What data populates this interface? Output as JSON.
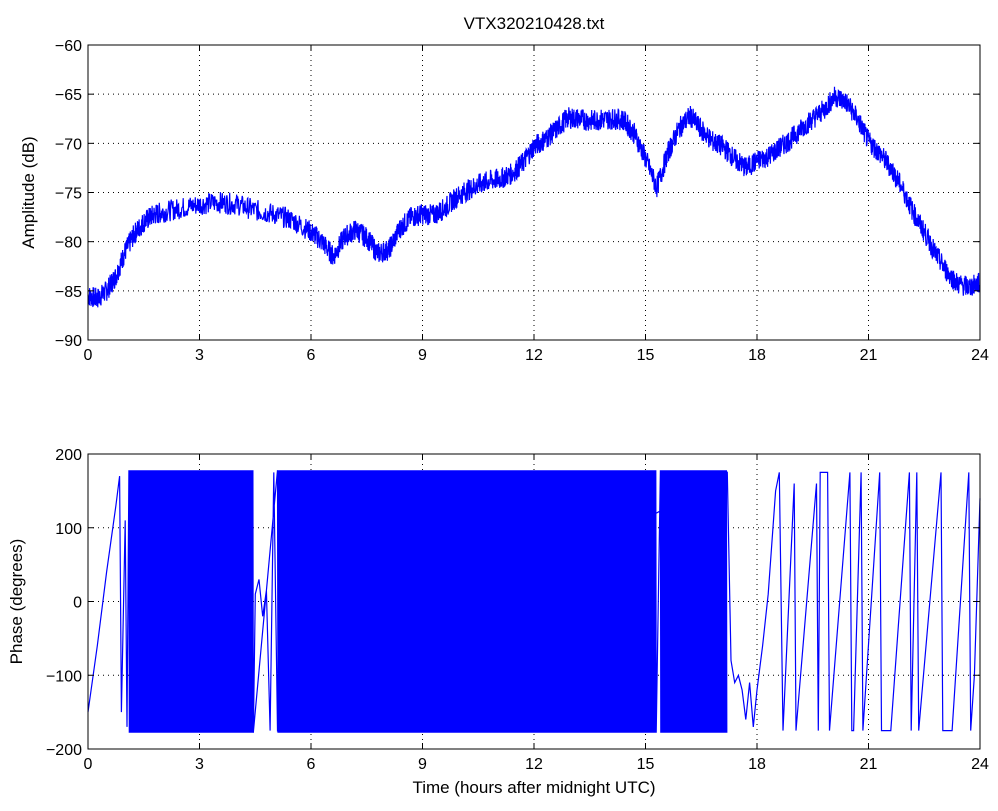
{
  "chart_data": [
    {
      "type": "line",
      "title": "VTX320210428.txt",
      "xlabel": "",
      "ylabel": "Amplitude (dB)",
      "xlim": [
        0,
        24
      ],
      "ylim": [
        -90,
        -60
      ],
      "xticks": [
        "0",
        "3",
        "6",
        "9",
        "12",
        "15",
        "18",
        "21",
        "24"
      ],
      "yticks": [
        "−60",
        "−65",
        "−70",
        "−75",
        "−80",
        "−85",
        "−90"
      ],
      "grid": true,
      "line_color": "#0000ff",
      "series": [
        {
          "x": [
            0,
            0.25,
            0.5,
            0.75,
            1,
            1.25,
            1.5,
            1.75,
            2,
            2.5,
            3,
            3.5,
            4,
            4.5,
            5,
            5.5,
            6,
            6.3,
            6.6,
            6.9,
            7.2,
            7.5,
            7.8,
            8.1,
            8.4,
            8.7,
            9,
            9.3,
            9.6,
            9.9,
            10.2,
            10.5,
            10.8,
            11.1,
            11.4,
            11.7,
            12,
            12.3,
            12.6,
            12.9,
            13.2,
            13.5,
            13.8,
            14.1,
            14.4,
            14.7,
            15,
            15.3,
            15.6,
            15.9,
            16.2,
            16.5,
            16.8,
            17.1,
            17.4,
            17.7,
            18,
            18.3,
            18.6,
            18.9,
            19.2,
            19.5,
            19.8,
            20.1,
            20.4,
            20.7,
            21,
            21.3,
            21.6,
            21.9,
            22.2,
            22.5,
            22.8,
            23.1,
            23.4,
            23.7,
            24
          ],
          "y": [
            -85.5,
            -85.8,
            -85,
            -83.5,
            -81,
            -79.2,
            -78,
            -77.3,
            -77,
            -76.6,
            -76.2,
            -76,
            -76.2,
            -76.8,
            -77.2,
            -77.8,
            -79,
            -80,
            -81.5,
            -79.5,
            -78.8,
            -79.6,
            -81.2,
            -80.8,
            -78.6,
            -77.5,
            -77.2,
            -77.3,
            -76.6,
            -75.5,
            -74.8,
            -74.2,
            -73.8,
            -73.6,
            -73.1,
            -72,
            -70.3,
            -69.6,
            -68.6,
            -67.4,
            -67.5,
            -67.7,
            -67.6,
            -67.5,
            -67.6,
            -69,
            -71.5,
            -74.5,
            -71,
            -68.5,
            -67.2,
            -68.6,
            -69.8,
            -70.4,
            -71.6,
            -72.5,
            -71.8,
            -71.3,
            -70.5,
            -69.6,
            -68.5,
            -67.5,
            -66.6,
            -65.2,
            -65.8,
            -67.5,
            -69.8,
            -71,
            -72.5,
            -74.5,
            -77,
            -79,
            -81.2,
            -83,
            -84.3,
            -84.6,
            -84.2
          ]
        }
      ]
    },
    {
      "type": "line",
      "title": "",
      "xlabel": "Time (hours after midnight UTC)",
      "ylabel": "Phase (degrees)",
      "xlim": [
        0,
        24
      ],
      "ylim": [
        -200,
        200
      ],
      "xticks": [
        "0",
        "3",
        "6",
        "9",
        "12",
        "15",
        "18",
        "21",
        "24"
      ],
      "yticks": [
        "200",
        "100",
        "0",
        "−100",
        "−200"
      ],
      "grid": true,
      "line_color": "#0000ff",
      "series": [
        {
          "x": [
            0,
            0.25,
            0.5,
            0.75,
            0.85,
            0.9,
            1.0,
            1.05,
            1.1,
            4.45,
            4.5,
            4.6,
            4.7,
            4.8,
            4.9,
            5.0,
            5.1,
            17.2,
            17.3,
            17.4,
            17.5,
            17.6,
            17.7,
            17.8,
            17.9,
            18.0,
            18.15,
            18.3,
            18.4,
            18.5,
            18.6,
            18.7,
            19.0,
            19.05,
            19.6,
            19.65,
            19.7,
            19.9,
            19.95,
            20.5,
            20.55,
            20.6,
            20.8,
            20.85,
            21.3,
            21.35,
            21.55,
            21.6,
            22.1,
            22.15,
            22.3,
            22.35,
            22.95,
            23.0,
            23.2,
            23.25,
            23.7,
            23.75,
            23.85,
            24.0
          ],
          "y": [
            -150,
            -60,
            40,
            130,
            170,
            -150,
            110,
            -170,
            175,
            -175,
            10,
            30,
            -20,
            15,
            -175,
            175,
            -175,
            175,
            -80,
            -110,
            -100,
            -120,
            -160,
            -110,
            -170,
            -120,
            -60,
            10,
            80,
            150,
            175,
            -175,
            160,
            -175,
            160,
            -175,
            175,
            175,
            -175,
            175,
            -175,
            -175,
            175,
            -175,
            175,
            -175,
            -175,
            -175,
            175,
            -175,
            175,
            -175,
            175,
            -175,
            -175,
            -175,
            175,
            -175,
            -100,
            140
          ]
        }
      ]
    }
  ]
}
